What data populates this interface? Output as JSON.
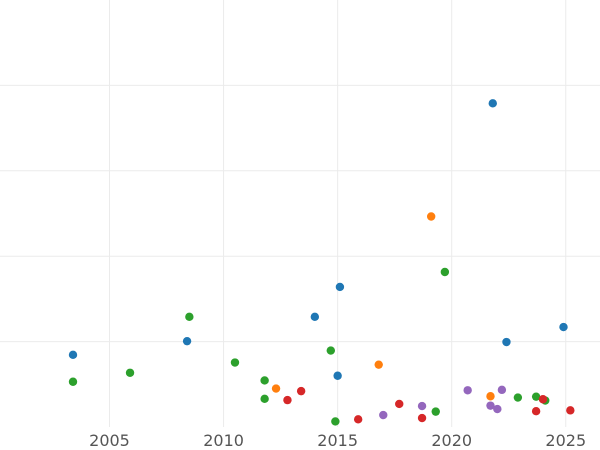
{
  "chart_data": {
    "type": "scatter",
    "title": "",
    "xlabel": "",
    "ylabel": "",
    "xlim": [
      2000.2,
      2026.5
    ],
    "ylim": [
      0,
      10
    ],
    "x_ticks": [
      2005,
      2010,
      2015,
      2020,
      2025
    ],
    "x_tick_labels": [
      "2005",
      "2010",
      "2015",
      "2020",
      "2025"
    ],
    "y_gridlines": [
      2,
      4,
      6,
      8
    ],
    "y_tick_labels_visible": false,
    "grid": true,
    "legend": "none",
    "series": [
      {
        "color": "#1f77b4",
        "points": [
          {
            "x": 2003.4,
            "y": 1.69
          },
          {
            "x": 2008.4,
            "y": 2.01
          },
          {
            "x": 2014.0,
            "y": 2.58
          },
          {
            "x": 2015.1,
            "y": 3.28
          },
          {
            "x": 2015.0,
            "y": 1.2
          },
          {
            "x": 2021.8,
            "y": 7.58
          },
          {
            "x": 2022.4,
            "y": 1.99
          },
          {
            "x": 2024.9,
            "y": 2.34
          }
        ]
      },
      {
        "color": "#ff7f0e",
        "points": [
          {
            "x": 2012.3,
            "y": 0.9
          },
          {
            "x": 2016.8,
            "y": 1.46
          },
          {
            "x": 2019.1,
            "y": 4.93
          },
          {
            "x": 2021.7,
            "y": 0.72
          }
        ]
      },
      {
        "color": "#2ca02c",
        "points": [
          {
            "x": 2003.4,
            "y": 1.06
          },
          {
            "x": 2005.9,
            "y": 1.27
          },
          {
            "x": 2008.5,
            "y": 2.58
          },
          {
            "x": 2010.5,
            "y": 1.51
          },
          {
            "x": 2011.8,
            "y": 1.09
          },
          {
            "x": 2011.8,
            "y": 0.66
          },
          {
            "x": 2014.7,
            "y": 1.79
          },
          {
            "x": 2014.9,
            "y": 0.13
          },
          {
            "x": 2019.7,
            "y": 3.63
          },
          {
            "x": 2019.3,
            "y": 0.36
          },
          {
            "x": 2022.9,
            "y": 0.69
          },
          {
            "x": 2023.7,
            "y": 0.71
          },
          {
            "x": 2024.1,
            "y": 0.62
          }
        ]
      },
      {
        "color": "#d62728",
        "points": [
          {
            "x": 2012.8,
            "y": 0.63
          },
          {
            "x": 2013.4,
            "y": 0.84
          },
          {
            "x": 2015.9,
            "y": 0.18
          },
          {
            "x": 2017.7,
            "y": 0.54
          },
          {
            "x": 2018.7,
            "y": 0.21
          },
          {
            "x": 2023.7,
            "y": 0.37
          },
          {
            "x": 2024.0,
            "y": 0.65
          },
          {
            "x": 2025.2,
            "y": 0.39
          }
        ]
      },
      {
        "color": "#9467bd",
        "points": [
          {
            "x": 2017.0,
            "y": 0.28
          },
          {
            "x": 2018.7,
            "y": 0.49
          },
          {
            "x": 2020.7,
            "y": 0.86
          },
          {
            "x": 2021.7,
            "y": 0.5
          },
          {
            "x": 2022.0,
            "y": 0.42
          },
          {
            "x": 2022.2,
            "y": 0.87
          }
        ]
      }
    ]
  }
}
